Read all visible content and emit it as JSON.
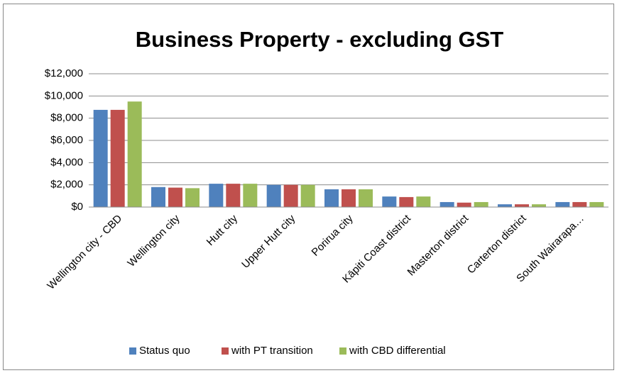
{
  "chart_data": {
    "type": "bar",
    "title": "Business Property - excluding GST",
    "categories": [
      "Wellington city - CBD",
      "Wellington city",
      "Hutt city",
      "Upper Hutt city",
      "Porirua city",
      "Kāpiti Coast district",
      "Masterton district",
      "Carterton district",
      "South Wairarapa…"
    ],
    "series": [
      {
        "name": "Status quo",
        "color": "#4f81bd",
        "values": [
          8750,
          1800,
          2100,
          2000,
          1600,
          950,
          450,
          250,
          450
        ]
      },
      {
        "name": "with PT transition",
        "color": "#c0504d",
        "values": [
          8750,
          1750,
          2100,
          2000,
          1600,
          900,
          400,
          250,
          450
        ]
      },
      {
        "name": "with CBD differential",
        "color": "#9bbb59",
        "values": [
          9500,
          1700,
          2100,
          2000,
          1600,
          950,
          450,
          250,
          450
        ]
      }
    ],
    "ylim": [
      0,
      12000
    ],
    "yticks": [
      {
        "value": 0,
        "label": "$0"
      },
      {
        "value": 2000,
        "label": "$2,000"
      },
      {
        "value": 4000,
        "label": "$4,000"
      },
      {
        "value": 6000,
        "label": "$6,000"
      },
      {
        "value": 8000,
        "label": "$8,000"
      },
      {
        "value": 10000,
        "label": "$10,000"
      },
      {
        "value": 12000,
        "label": "$12,000"
      }
    ],
    "grid": true,
    "legend": "bottom"
  }
}
